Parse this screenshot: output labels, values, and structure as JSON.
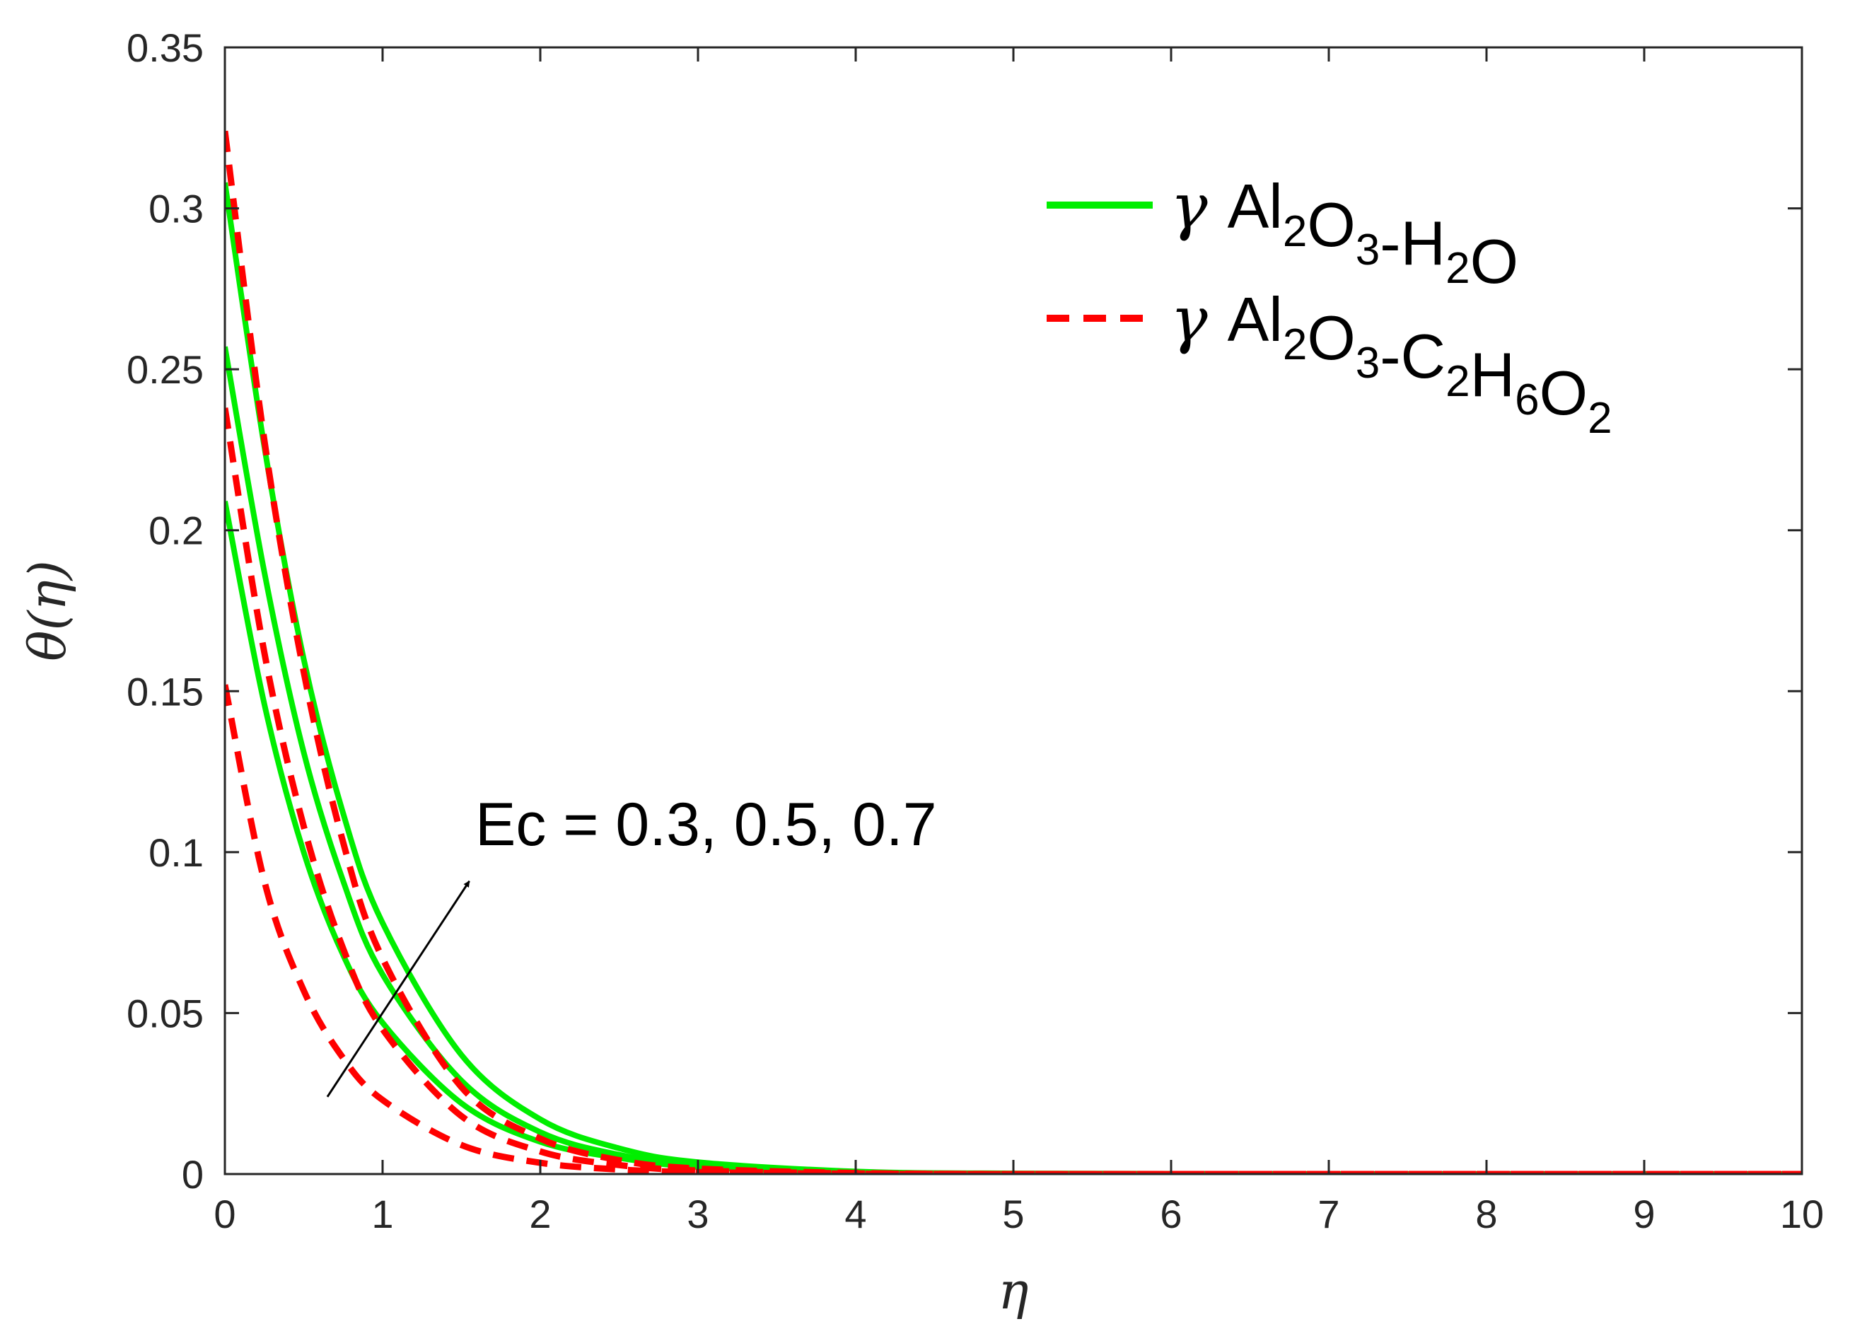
{
  "chart_data": {
    "type": "line",
    "xlabel": "η",
    "ylabel": "θ(η)",
    "xlim": [
      0,
      10
    ],
    "ylim": [
      0,
      0.35
    ],
    "x_ticks": [
      "0",
      "1",
      "2",
      "3",
      "4",
      "5",
      "6",
      "7",
      "8",
      "9",
      "10"
    ],
    "y_ticks": [
      "0",
      "0.05",
      "0.1",
      "0.15",
      "0.2",
      "0.25",
      "0.3",
      "0.35"
    ],
    "grid": false,
    "legend_position": "top-right",
    "legend": [
      {
        "prefix": "γ",
        "parts": [
          [
            "Al",
            ""
          ],
          [
            "2",
            "sub"
          ],
          [
            "O",
            ""
          ],
          [
            "3",
            "sub"
          ],
          [
            "-H",
            ""
          ],
          [
            "2",
            "sub"
          ],
          [
            "O",
            ""
          ]
        ],
        "color": "#00ee00",
        "style": "solid"
      },
      {
        "prefix": "γ",
        "parts": [
          [
            "Al",
            ""
          ],
          [
            "2",
            "sub"
          ],
          [
            "O",
            ""
          ],
          [
            "3",
            "sub"
          ],
          [
            "-C",
            ""
          ],
          [
            "2",
            "sub"
          ],
          [
            "H",
            ""
          ],
          [
            "6",
            "sub"
          ],
          [
            "O",
            ""
          ],
          [
            "2",
            "sub"
          ]
        ],
        "color": "#ff0000",
        "style": "dashed"
      }
    ],
    "annotation": {
      "text": "Ec = 0.3, 0.5, 0.7",
      "arrow_from": [
        0.65,
        0.024
      ],
      "arrow_to": [
        1.55,
        0.091
      ]
    },
    "series": [
      {
        "group": 0,
        "ec": "0.3",
        "color": "#00ee00",
        "style": "solid",
        "x": [
          0,
          0.25,
          0.5,
          0.75,
          1,
          1.5,
          2,
          2.5,
          3,
          4,
          5,
          7,
          10
        ],
        "y": [
          0.209,
          0.146,
          0.1,
          0.068,
          0.047,
          0.022,
          0.01,
          0.005,
          0.0022,
          0.0005,
          0.0001,
          0,
          0
        ]
      },
      {
        "group": 0,
        "ec": "0.5",
        "color": "#00ee00",
        "style": "solid",
        "x": [
          0,
          0.25,
          0.5,
          0.75,
          1,
          1.5,
          2,
          2.5,
          3,
          4,
          5,
          7,
          10
        ],
        "y": [
          0.257,
          0.187,
          0.131,
          0.091,
          0.062,
          0.029,
          0.013,
          0.006,
          0.0029,
          0.0006,
          0.0001,
          0,
          0
        ]
      },
      {
        "group": 0,
        "ec": "0.7",
        "color": "#00ee00",
        "style": "solid",
        "x": [
          0,
          0.25,
          0.5,
          0.75,
          1,
          1.5,
          2,
          2.5,
          3,
          4,
          5,
          7,
          10
        ],
        "y": [
          0.308,
          0.226,
          0.16,
          0.112,
          0.078,
          0.037,
          0.017,
          0.008,
          0.0037,
          0.0008,
          0.0002,
          0,
          0
        ]
      },
      {
        "group": 1,
        "ec": "0.3",
        "color": "#ff0000",
        "style": "dashed",
        "x": [
          0,
          0.25,
          0.5,
          0.75,
          1,
          1.5,
          2,
          2.5,
          3,
          4,
          5,
          7,
          10
        ],
        "y": [
          0.152,
          0.091,
          0.057,
          0.036,
          0.023,
          0.009,
          0.0035,
          0.0014,
          0.0006,
          0.0001,
          0,
          0,
          0
        ]
      },
      {
        "group": 1,
        "ec": "0.5",
        "color": "#ff0000",
        "style": "dashed",
        "x": [
          0,
          0.25,
          0.5,
          0.75,
          1,
          1.5,
          2,
          2.5,
          3,
          4,
          5,
          7,
          10
        ],
        "y": [
          0.238,
          0.162,
          0.108,
          0.07,
          0.045,
          0.018,
          0.007,
          0.0028,
          0.0011,
          0.0002,
          0,
          0,
          0
        ]
      },
      {
        "group": 1,
        "ec": "0.7",
        "color": "#ff0000",
        "style": "dashed",
        "x": [
          0,
          0.25,
          0.5,
          0.75,
          1,
          1.5,
          2,
          2.5,
          3,
          4,
          5,
          7,
          10
        ],
        "y": [
          0.324,
          0.228,
          0.156,
          0.103,
          0.067,
          0.027,
          0.011,
          0.0043,
          0.0017,
          0.0003,
          0,
          0,
          0
        ]
      }
    ]
  }
}
